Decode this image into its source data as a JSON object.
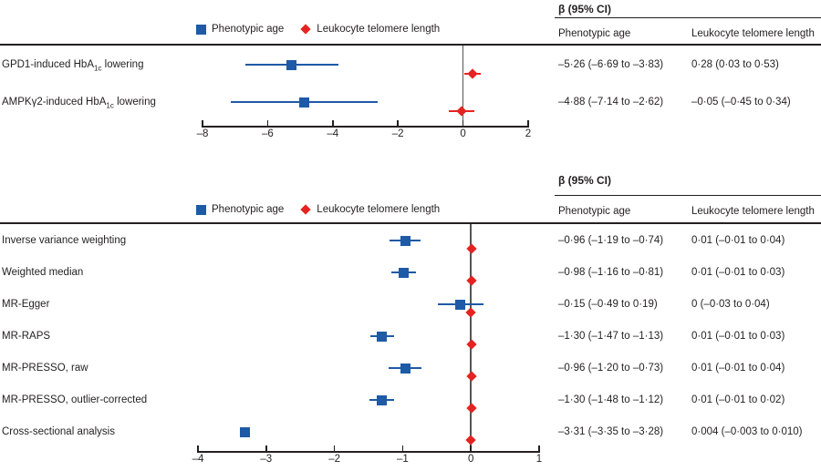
{
  "colors": {
    "phenotypic_age": "#1e5aa6",
    "telomere_length": "#e52421",
    "zero_line": "#555555",
    "axis": "#231f20",
    "text": "#231f20"
  },
  "chart_data": [
    {
      "type": "scatter",
      "subtype": "forest-plot",
      "title": "β (95% CI)",
      "legend": [
        "Phenotypic age",
        "Leukocyte telomere length"
      ],
      "legend_position": "top",
      "table_columns": [
        "Phenotypic age",
        "Leukocyte telomere length"
      ],
      "xlim": [
        -8,
        2
      ],
      "xticks": [
        -8,
        -6,
        -4,
        -2,
        0,
        2
      ],
      "xtick_labels": [
        "–8",
        "–6",
        "–4",
        "–2",
        "0",
        "2"
      ],
      "grid": false,
      "zero_reference_line": true,
      "rows": [
        {
          "label": "GPD1-induced HbA1c lowering",
          "label_parts": {
            "pre": "GPD1-induced HbA",
            "sub": "1c",
            "post": " lowering"
          },
          "phenotypic_age": {
            "beta": -5.26,
            "ci": [
              -6.69,
              -3.83
            ],
            "display": "–5·26 (–6·69 to –3·83)"
          },
          "telomere_length": {
            "beta": 0.28,
            "ci": [
              0.03,
              0.53
            ],
            "display": "0·28 (0·03 to 0·53)"
          }
        },
        {
          "label": "AMPKγ2-induced HbA1c lowering",
          "label_parts": {
            "pre": "AMPKγ2-induced HbA",
            "sub": "1c",
            "post": " lowering"
          },
          "phenotypic_age": {
            "beta": -4.88,
            "ci": [
              -7.14,
              -2.62
            ],
            "display": "–4·88 (–7·14 to –2·62)"
          },
          "telomere_length": {
            "beta": -0.05,
            "ci": [
              -0.45,
              0.34
            ],
            "display": "–0·05 (–0·45 to 0·34)"
          }
        }
      ]
    },
    {
      "type": "scatter",
      "subtype": "forest-plot",
      "title": "β (95% CI)",
      "legend": [
        "Phenotypic age",
        "Leukocyte telomere length"
      ],
      "legend_position": "top",
      "table_columns": [
        "Phenotypic age",
        "Leukocyte telomere length"
      ],
      "xlim": [
        -4,
        1
      ],
      "xticks": [
        -4,
        -3,
        -2,
        -1,
        0,
        1
      ],
      "xtick_labels": [
        "–4",
        "–3",
        "–2",
        "–1",
        "0",
        "1"
      ],
      "grid": false,
      "zero_reference_line": true,
      "rows": [
        {
          "label": "Inverse variance weighting",
          "phenotypic_age": {
            "beta": -0.96,
            "ci": [
              -1.19,
              -0.74
            ],
            "display": "–0·96 (–1·19 to –0·74)"
          },
          "telomere_length": {
            "beta": 0.01,
            "ci": [
              -0.01,
              0.04
            ],
            "display": "0·01 (–0·01 to 0·04)"
          }
        },
        {
          "label": "Weighted median",
          "phenotypic_age": {
            "beta": -0.98,
            "ci": [
              -1.16,
              -0.81
            ],
            "display": "–0·98 (–1·16 to –0·81)"
          },
          "telomere_length": {
            "beta": 0.01,
            "ci": [
              -0.01,
              0.03
            ],
            "display": "0·01 (–0·01 to 0·03)"
          }
        },
        {
          "label": "MR-Egger",
          "phenotypic_age": {
            "beta": -0.15,
            "ci": [
              -0.49,
              0.19
            ],
            "display": "–0·15 (–0·49 to 0·19)"
          },
          "telomere_length": {
            "beta": 0,
            "ci": [
              -0.03,
              0.04
            ],
            "display": "0 (–0·03 to 0·04)"
          }
        },
        {
          "label": "MR-RAPS",
          "phenotypic_age": {
            "beta": -1.3,
            "ci": [
              -1.47,
              -1.13
            ],
            "display": "–1·30 (–1·47 to –1·13)"
          },
          "telomere_length": {
            "beta": 0.01,
            "ci": [
              -0.01,
              0.03
            ],
            "display": "0·01 (–0·01 to 0·03)"
          }
        },
        {
          "label": "MR-PRESSO, raw",
          "phenotypic_age": {
            "beta": -0.96,
            "ci": [
              -1.2,
              -0.73
            ],
            "display": "–0·96 (–1·20 to –0·73)"
          },
          "telomere_length": {
            "beta": 0.01,
            "ci": [
              -0.01,
              0.04
            ],
            "display": "0·01 (–0·01 to 0·04)"
          }
        },
        {
          "label": "MR-PRESSO, outlier-corrected",
          "phenotypic_age": {
            "beta": -1.3,
            "ci": [
              -1.48,
              -1.12
            ],
            "display": "–1·30 (–1·48 to –1·12)"
          },
          "telomere_length": {
            "beta": 0.01,
            "ci": [
              -0.01,
              0.02
            ],
            "display": "0·01 (–0·01 to 0·02)"
          }
        },
        {
          "label": "Cross-sectional analysis",
          "phenotypic_age": {
            "beta": -3.31,
            "ci": [
              -3.35,
              -3.28
            ],
            "display": "–3·31 (–3·35 to –3·28)"
          },
          "telomere_length": {
            "beta": 0.004,
            "ci": [
              -0.003,
              0.01
            ],
            "display": "0·004 (–0·003 to 0·010)"
          }
        }
      ]
    }
  ]
}
